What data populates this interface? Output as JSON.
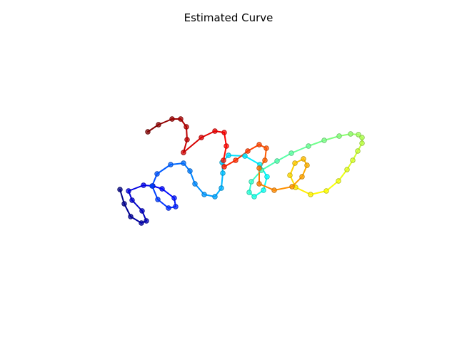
{
  "chart_data": {
    "type": "line",
    "title": "Estimated Curve",
    "xlabel": "",
    "ylabel": "",
    "axes_visible": false,
    "grid": false,
    "legend": "none",
    "colormap": "jet",
    "marker": "circle",
    "series": [
      {
        "points": [
          [
            168,
            266
          ],
          [
            174,
            286
          ],
          [
            183,
            304
          ],
          [
            198,
            313
          ],
          [
            205,
            310
          ],
          [
            199,
            296
          ],
          [
            185,
            281
          ],
          [
            180,
            268
          ],
          [
            201,
            260
          ],
          [
            214,
            261
          ],
          [
            227,
            265
          ],
          [
            244,
            278
          ],
          [
            246,
            290
          ],
          [
            236,
            292
          ],
          [
            221,
            280
          ],
          [
            213,
            261
          ],
          [
            220,
            244
          ],
          [
            239,
            231
          ],
          [
            257,
            229
          ],
          [
            266,
            240
          ],
          [
            273,
            258
          ],
          [
            286,
            273
          ],
          [
            301,
            276
          ],
          [
            310,
            264
          ],
          [
            312,
            243
          ],
          [
            311,
            228
          ],
          [
            320,
            218
          ],
          [
            343,
            219
          ],
          [
            364,
            231
          ],
          [
            374,
            248
          ],
          [
            369,
            267
          ],
          [
            356,
            276
          ],
          [
            349,
            270
          ],
          [
            352,
            255
          ],
          [
            366,
            239
          ],
          [
            388,
            226
          ],
          [
            408,
            215
          ],
          [
            432,
            205
          ],
          [
            454,
            197
          ],
          [
            475,
            191
          ],
          [
            491,
            188
          ],
          [
            502,
            189
          ],
          [
            507,
            193
          ],
          [
            507,
            201
          ],
          [
            501,
            212
          ],
          [
            494,
            225
          ],
          [
            486,
            238
          ],
          [
            474,
            254
          ],
          [
            457,
            268
          ],
          [
            435,
            273
          ],
          [
            414,
            263
          ],
          [
            406,
            246
          ],
          [
            413,
            229
          ],
          [
            425,
            223
          ],
          [
            430,
            232
          ],
          [
            423,
            248
          ],
          [
            409,
            262
          ],
          [
            384,
            267
          ],
          [
            363,
            258
          ],
          [
            363,
            236
          ],
          [
            371,
            225
          ],
          [
            373,
            208
          ],
          [
            363,
            203
          ],
          [
            347,
            212
          ],
          [
            330,
            225
          ],
          [
            314,
            234
          ],
          [
            313,
            225
          ],
          [
            317,
            205
          ],
          [
            314,
            186
          ],
          [
            301,
            184
          ],
          [
            282,
            193
          ],
          [
            257,
            214
          ],
          [
            262,
            196
          ],
          [
            261,
            178
          ],
          [
            253,
            167
          ],
          [
            241,
            167
          ],
          [
            222,
            175
          ],
          [
            207,
            185
          ]
        ]
      }
    ]
  }
}
